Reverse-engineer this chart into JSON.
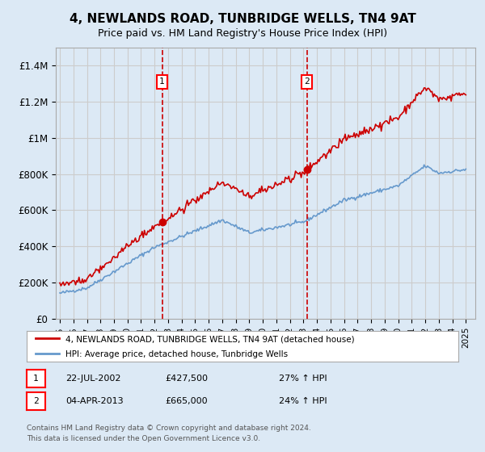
{
  "title": "4, NEWLANDS ROAD, TUNBRIDGE WELLS, TN4 9AT",
  "subtitle": "Price paid vs. HM Land Registry's House Price Index (HPI)",
  "legend_line1": "4, NEWLANDS ROAD, TUNBRIDGE WELLS, TN4 9AT (detached house)",
  "legend_line2": "HPI: Average price, detached house, Tunbridge Wells",
  "footnote1": "Contains HM Land Registry data © Crown copyright and database right 2024.",
  "footnote2": "This data is licensed under the Open Government Licence v3.0.",
  "sale1_date": "22-JUL-2002",
  "sale1_price": "£427,500",
  "sale1_hpi": "27% ↑ HPI",
  "sale2_date": "04-APR-2013",
  "sale2_price": "£665,000",
  "sale2_hpi": "24% ↑ HPI",
  "house_color": "#cc0000",
  "hpi_color": "#6699cc",
  "vline_color": "#cc0000",
  "background_color": "#dce9f5",
  "grid_color": "#cccccc",
  "ylim": [
    0,
    1500000
  ],
  "yticks": [
    0,
    200000,
    400000,
    600000,
    800000,
    1000000,
    1200000,
    1400000
  ],
  "ytick_labels": [
    "£0",
    "£200K",
    "£400K",
    "£600K",
    "£800K",
    "£1M",
    "£1.2M",
    "£1.4M"
  ]
}
